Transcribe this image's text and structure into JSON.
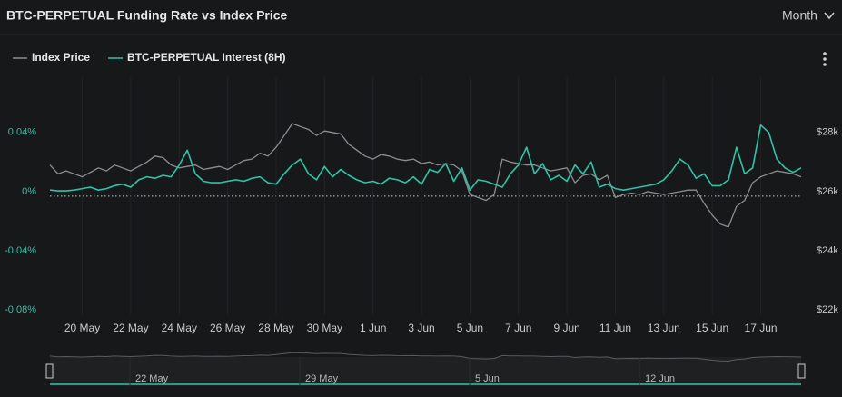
{
  "header": {
    "title": "BTC-PERPETUAL Funding Rate vs Index Price",
    "range": "Month"
  },
  "chart_data": {
    "type": "line",
    "categories": [
      null,
      null,
      null,
      null,
      "20 May",
      null,
      null,
      null,
      null,
      null,
      "22 May",
      null,
      null,
      null,
      null,
      null,
      "24 May",
      null,
      null,
      null,
      null,
      null,
      "26 May",
      null,
      null,
      null,
      null,
      null,
      "28 May",
      null,
      null,
      null,
      null,
      null,
      "30 May",
      null,
      null,
      null,
      null,
      null,
      "1 Jun",
      null,
      null,
      null,
      null,
      null,
      "3 Jun",
      null,
      null,
      null,
      null,
      null,
      "5 Jun",
      null,
      null,
      null,
      null,
      null,
      "7 Jun",
      null,
      null,
      null,
      null,
      null,
      "9 Jun",
      null,
      null,
      null,
      null,
      null,
      "11 Jun",
      null,
      null,
      null,
      null,
      null,
      "13 Jun",
      null,
      null,
      null,
      null,
      null,
      "15 Jun",
      null,
      null,
      null,
      null,
      null,
      "17 Jun",
      null,
      null,
      null,
      null,
      null
    ],
    "series": [
      {
        "name": "Index Price",
        "color": "#8c8d90",
        "axis": "y2",
        "values": [
          26900,
          26600,
          26700,
          26600,
          26500,
          26650,
          26800,
          26700,
          26900,
          26800,
          26700,
          26850,
          27000,
          27200,
          27150,
          26900,
          26800,
          26850,
          26900,
          26750,
          26800,
          26850,
          26750,
          26900,
          27050,
          27100,
          27300,
          27200,
          27500,
          27900,
          28300,
          28200,
          28100,
          27900,
          28050,
          28000,
          27950,
          27600,
          27400,
          27200,
          27100,
          27250,
          27200,
          27100,
          27050,
          27100,
          26950,
          27000,
          26900,
          26950,
          26900,
          26700,
          25900,
          25800,
          25700,
          25900,
          27100,
          27000,
          26950,
          26900,
          26900,
          26800,
          26700,
          26750,
          26800,
          26300,
          26550,
          26600,
          26400,
          26550,
          25800,
          25900,
          25950,
          25900,
          26000,
          25950,
          25900,
          25950,
          26000,
          26050,
          26050,
          25600,
          25200,
          24900,
          24800,
          25500,
          25700,
          26300,
          26500,
          26600,
          26700,
          26650,
          26600,
          26500
        ]
      },
      {
        "name": "BTC-PERPETUAL Interest (8H)",
        "color": "#2ec4a6",
        "values": [
          0.001,
          0.0005,
          0.0005,
          0.001,
          0.002,
          0.003,
          0.001,
          0.002,
          0.004,
          0.005,
          0.003,
          0.008,
          0.01,
          0.009,
          0.011,
          0.01,
          0.018,
          0.028,
          0.012,
          0.007,
          0.006,
          0.006,
          0.007,
          0.008,
          0.007,
          0.009,
          0.01,
          0.006,
          0.005,
          0.012,
          0.018,
          0.022,
          0.012,
          0.008,
          0.017,
          0.01,
          0.015,
          0.011,
          0.008,
          0.006,
          0.007,
          0.005,
          0.009,
          0.008,
          0.006,
          0.01,
          0.005,
          0.015,
          0.013,
          0.019,
          0.007,
          0.016,
          0.001,
          0.008,
          0.007,
          0.005,
          0.003,
          0.012,
          0.018,
          0.03,
          0.012,
          0.019,
          0.008,
          0.011,
          0.007,
          0.018,
          0.012,
          0.02,
          0.003,
          0.005,
          0.002,
          0.001,
          0.002,
          0.003,
          0.004,
          0.005,
          0.008,
          0.014,
          0.022,
          0.018,
          0.009,
          0.012,
          0.004,
          0.004,
          0.008,
          0.03,
          0.012,
          0.016,
          0.045,
          0.04,
          0.022,
          0.016,
          0.013,
          0.016
        ]
      }
    ],
    "ylim": [
      -0.08,
      0.07
    ],
    "yticks": [
      {
        "value": 0.04,
        "label": "0.04%"
      },
      {
        "value": 0,
        "label": "0%"
      },
      {
        "value": -0.04,
        "label": "-0.04%"
      },
      {
        "value": -0.08,
        "label": "-0.08%"
      }
    ],
    "y2lim": [
      22000,
      29500
    ],
    "y2ticks": [
      {
        "value": 28000,
        "label": "$28k"
      },
      {
        "value": 26000,
        "label": "$26k"
      },
      {
        "value": 24000,
        "label": "$24k"
      },
      {
        "value": 22000,
        "label": "$22k"
      }
    ],
    "legend": "top-left",
    "navigator_ticks": [
      "22 May",
      "29 May",
      "5 Jun",
      "12 Jun"
    ]
  }
}
